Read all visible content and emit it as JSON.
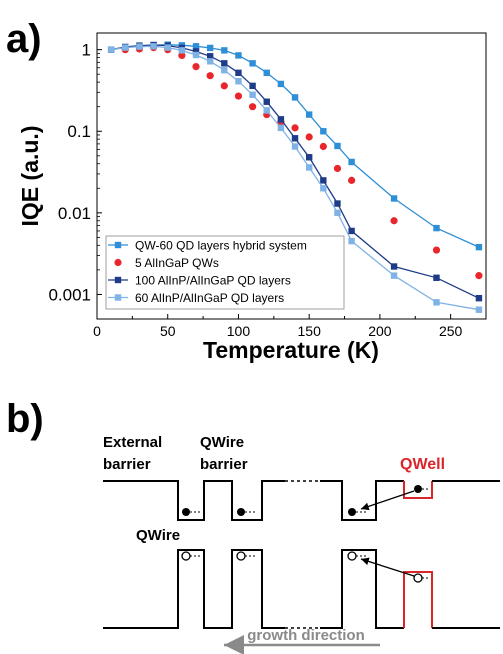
{
  "panel_a": {
    "label": "a)",
    "chart_data": {
      "type": "line",
      "xlabel": "Temperature (K)",
      "ylabel": "IQE (a.u.)",
      "xlim": [
        0,
        275
      ],
      "ylim": [
        0.0005,
        1.6
      ],
      "yscale": "log",
      "xticks": [
        0,
        50,
        100,
        150,
        200,
        250
      ],
      "yticks": [
        1,
        0.1,
        0.01,
        0.001
      ],
      "ytick_labels": [
        "1",
        "0.1",
        "0.01",
        "0.001"
      ],
      "legend_position": "bottom-left",
      "series": [
        {
          "name": "QW-60 QD layers hybrid system",
          "color": "#2e8fd6",
          "marker": "square",
          "line": true,
          "x": [
            10,
            20,
            30,
            40,
            50,
            60,
            70,
            80,
            90,
            100,
            110,
            120,
            130,
            140,
            150,
            160,
            170,
            180,
            210,
            240,
            270
          ],
          "y": [
            1.0,
            1.07,
            1.1,
            1.13,
            1.15,
            1.13,
            1.1,
            1.05,
            0.98,
            0.85,
            0.68,
            0.52,
            0.38,
            0.26,
            0.16,
            0.1,
            0.066,
            0.042,
            0.015,
            0.0065,
            0.0038
          ]
        },
        {
          "name": "5 AlInGaP QWs",
          "color": "#e8262b",
          "marker": "circle",
          "line": false,
          "x": [
            20,
            30,
            40,
            50,
            60,
            70,
            80,
            90,
            100,
            110,
            120,
            130,
            140,
            150,
            160,
            170,
            180,
            210,
            240,
            270
          ],
          "y": [
            1.0,
            1.02,
            1.06,
            1.0,
            0.85,
            0.62,
            0.48,
            0.36,
            0.27,
            0.2,
            0.16,
            0.13,
            0.11,
            0.085,
            0.065,
            0.035,
            0.025,
            0.008,
            0.0035,
            0.0017
          ]
        },
        {
          "name": "100 AlInP/AlInGaP QD layers",
          "color": "#1f3c88",
          "marker": "square",
          "line": true,
          "x": [
            10,
            20,
            30,
            40,
            50,
            60,
            70,
            80,
            90,
            100,
            110,
            120,
            130,
            140,
            150,
            160,
            170,
            180,
            210,
            240,
            270
          ],
          "y": [
            1.0,
            1.08,
            1.12,
            1.14,
            1.12,
            1.05,
            0.95,
            0.83,
            0.68,
            0.52,
            0.36,
            0.23,
            0.14,
            0.082,
            0.048,
            0.025,
            0.013,
            0.006,
            0.0022,
            0.0016,
            0.0009
          ]
        },
        {
          "name": "60 AlInP/AlInGaP QD layers",
          "color": "#7fb2e5",
          "marker": "square",
          "line": true,
          "x": [
            10,
            20,
            30,
            40,
            50,
            60,
            70,
            80,
            90,
            100,
            110,
            120,
            130,
            140,
            150,
            160,
            170,
            180,
            210,
            240,
            270
          ],
          "y": [
            1.0,
            1.06,
            1.09,
            1.1,
            1.06,
            0.98,
            0.86,
            0.72,
            0.56,
            0.41,
            0.28,
            0.18,
            0.11,
            0.065,
            0.036,
            0.02,
            0.01,
            0.0045,
            0.0017,
            0.0008,
            0.00065
          ]
        }
      ]
    }
  },
  "panel_b": {
    "label": "b)",
    "external_barrier_label": [
      "External",
      "barrier"
    ],
    "qwire_barrier_label": [
      "QWire",
      "barrier"
    ],
    "qwell_label": "QWell",
    "qwire_label": "QWire",
    "growth_direction_label": "growth direction",
    "qwell_color": "#d9262b",
    "arrow_color": "#8a8a8a"
  }
}
